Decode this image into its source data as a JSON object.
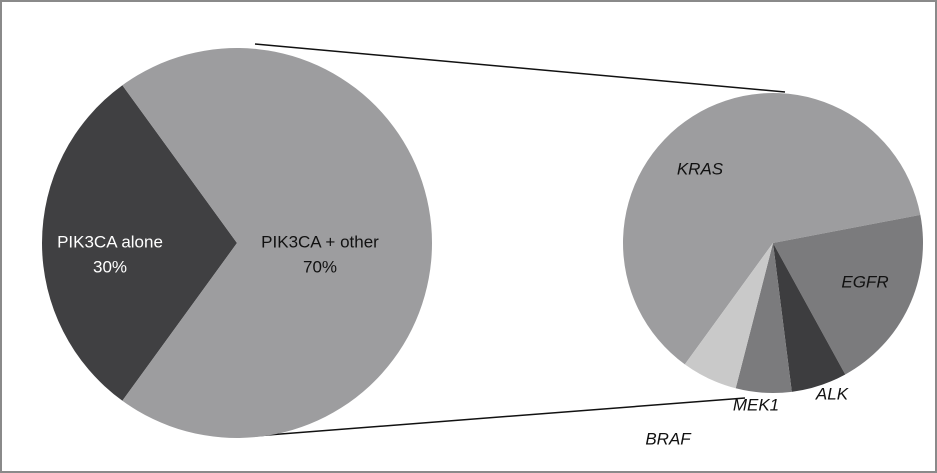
{
  "chart_data": [
    {
      "type": "pie",
      "labels": [
        "PIK3CA alone",
        "PIK3CA + other"
      ],
      "values": [
        30,
        70
      ],
      "value_labels": [
        "30%",
        "70%"
      ],
      "colors": [
        "#404042",
        "#9d9d9f"
      ]
    },
    {
      "type": "pie",
      "labels": [
        "KRAS",
        "EGFR",
        "ALK",
        "MEK1",
        "BRAF"
      ],
      "values": [
        62,
        20,
        6,
        6,
        6
      ],
      "colors": [
        "#9d9d9f",
        "#7b7b7d",
        "#3d3d3f",
        "#7b7b7d",
        "#c9c9c9"
      ]
    }
  ]
}
